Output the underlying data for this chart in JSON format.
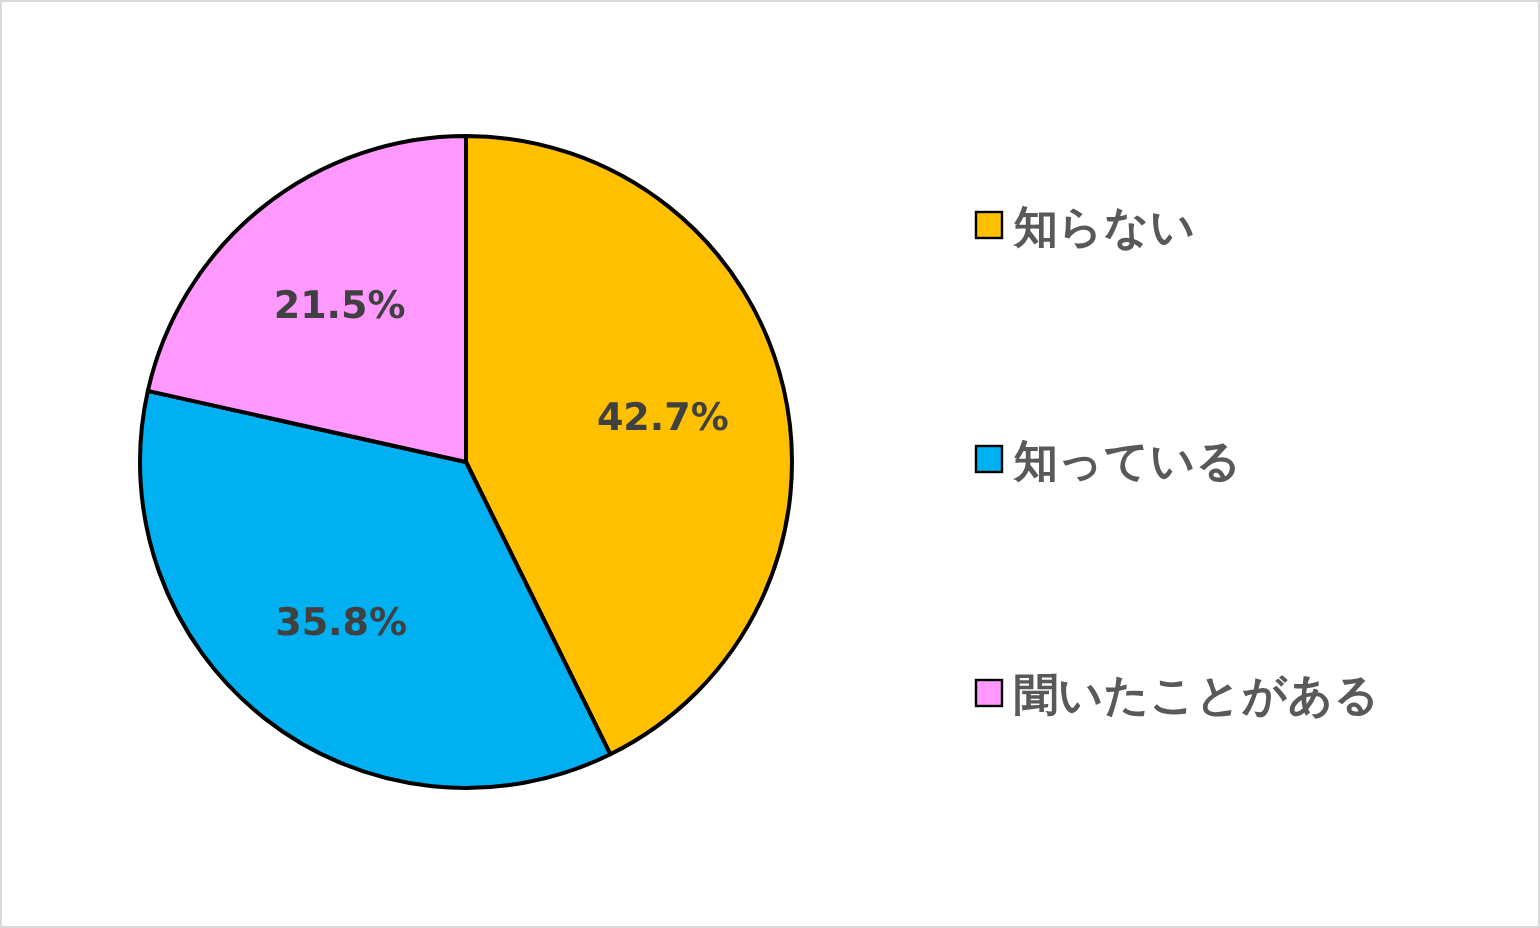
{
  "chart_data": {
    "type": "pie",
    "categories": [
      "知らない",
      "知っている",
      "聞いたことがある"
    ],
    "values": [
      42.7,
      35.8,
      21.5
    ],
    "colors": [
      "#ffc000",
      "#00b0f0",
      "#ff99ff"
    ],
    "value_labels": [
      "42.7%",
      "35.8%",
      "21.5%"
    ],
    "legend": "right"
  }
}
